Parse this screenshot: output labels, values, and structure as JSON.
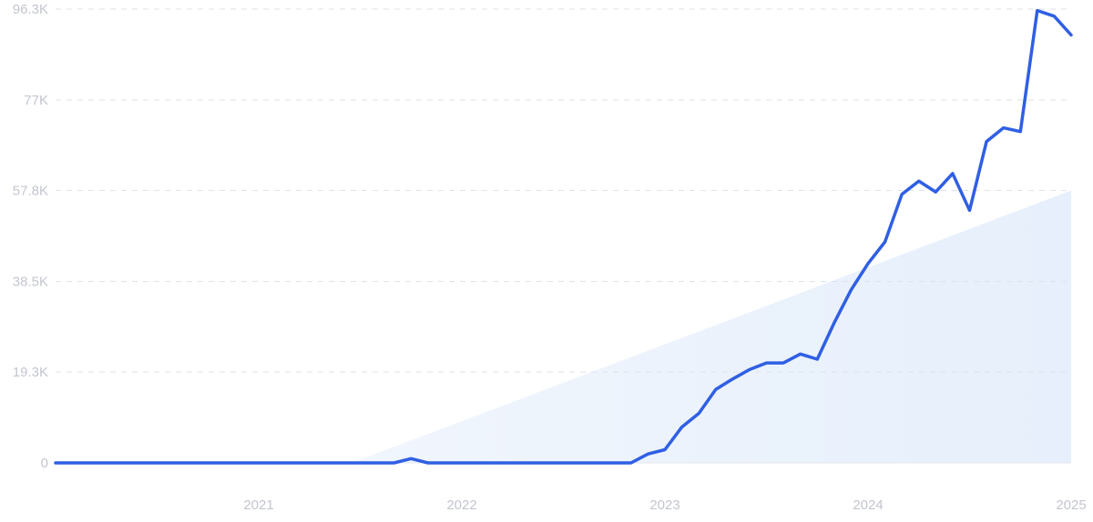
{
  "chart_data": {
    "type": "line",
    "title": "",
    "xlabel": "",
    "ylabel": "",
    "y_ticks": [
      "0",
      "19.3K",
      "38.5K",
      "57.8K",
      "77K",
      "96.3K"
    ],
    "y_tick_values": [
      0,
      19300,
      38500,
      57800,
      77000,
      96300
    ],
    "x_ticks": [
      "2021",
      "2022",
      "2023",
      "2024",
      "2025"
    ],
    "x_tick_values": [
      2021,
      2022,
      2023,
      2024,
      2025
    ],
    "xlim": [
      2020.0,
      2025.0
    ],
    "ylim": [
      0,
      96300
    ],
    "grid": true,
    "legend": "none",
    "colors": {
      "line": "#2f5fe3",
      "trend_fill": "#eaf2fc",
      "grid": "#dfe2ea",
      "tick_text": "#c3c6cf"
    },
    "trend_band": {
      "description_free": true,
      "x": [
        2021.4583,
        2025.0
      ],
      "y": [
        0,
        57800
      ]
    },
    "series": [
      {
        "x": [
          2020.0,
          2020.0833,
          2020.1667,
          2020.25,
          2020.3333,
          2020.4167,
          2020.5,
          2020.5833,
          2020.6667,
          2020.75,
          2020.8333,
          2020.9167,
          2021.0,
          2021.0833,
          2021.1667,
          2021.25,
          2021.3333,
          2021.4167,
          2021.5,
          2021.5833,
          2021.6667,
          2021.75,
          2021.8333,
          2021.9167,
          2022.0,
          2022.0833,
          2022.1667,
          2022.25,
          2022.3333,
          2022.4167,
          2022.5,
          2022.5833,
          2022.6667,
          2022.75,
          2022.8333,
          2022.9167,
          2023.0,
          2023.0833,
          2023.1667,
          2023.25,
          2023.3333,
          2023.4167,
          2023.5,
          2023.5833,
          2023.6667,
          2023.75,
          2023.8333,
          2023.9167,
          2024.0,
          2024.0833,
          2024.1667,
          2024.25,
          2024.3333,
          2024.4167,
          2024.5,
          2024.5833,
          2024.6667,
          2024.75,
          2024.8333,
          2024.9167,
          2025.0
        ],
        "values": [
          0,
          0,
          0,
          0,
          0,
          0,
          0,
          0,
          0,
          0,
          0,
          0,
          0,
          0,
          0,
          0,
          0,
          0,
          0,
          0,
          0,
          900,
          0,
          0,
          0,
          0,
          0,
          0,
          0,
          0,
          0,
          0,
          0,
          0,
          0,
          1900,
          2800,
          7600,
          10500,
          15600,
          17800,
          19800,
          21200,
          21200,
          23100,
          22000,
          29700,
          36700,
          42300,
          46900,
          57000,
          59800,
          57500,
          61400,
          53600,
          68200,
          71100,
          70300,
          96000,
          94800,
          90800
        ]
      }
    ]
  }
}
